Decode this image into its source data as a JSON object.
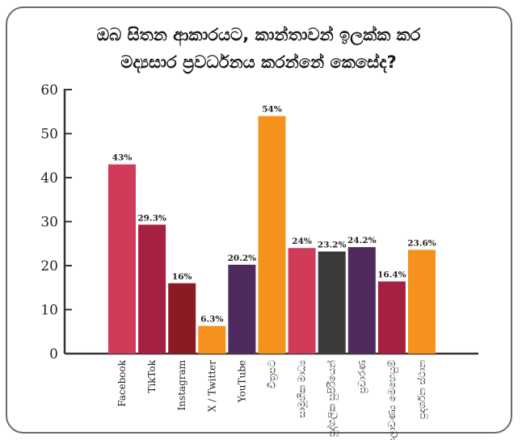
{
  "colors": {
    "pink": "#d13b5a",
    "crimson": "#a5213f",
    "maroon": "#8b1a24",
    "orange": "#f5921e",
    "purple": "#4f2a5e",
    "charcoal": "#3a3a3a"
  },
  "chart_data": {
    "type": "bar",
    "title_lines": [
      "ඔබ සිතන ආකාරයට, කාන්තාවන් ඉලක්ක කර",
      "මද්‍යසාර ප්‍රවර්ධනය කරන්නේ කෙසේද?"
    ],
    "ylim": [
      0,
      60
    ],
    "yticks": [
      0,
      10,
      20,
      30,
      40,
      50,
      60
    ],
    "grid": false,
    "categories": [
      "Facebook",
      "TikTok",
      "Instagram",
      "X / Twitter",
      "YouTube",
      "චිත්‍රපට",
      "සාමූහික මාධ්‍ය",
      "පුද්ගලික සුපිරියෙන්",
      "ප්‍රචාරණ",
      "රූපලාවණ්‍ය මෙහෙයුම්",
      "ප්‍රදර්ශන ස්ථාන"
    ],
    "values": [
      43,
      29.3,
      16,
      6.3,
      20.2,
      54,
      24,
      23.2,
      24.2,
      16.4,
      23.6
    ],
    "labels": [
      "43%",
      "29.3%",
      "16%",
      "6.3%",
      "20.2%",
      "54%",
      "24%",
      "23.2%",
      "24.2%",
      "16.4%",
      "23.6%"
    ],
    "bar_colors": [
      "#d13b5a",
      "#a5213f",
      "#8b1a24",
      "#f5921e",
      "#4f2a5e",
      "#f5921e",
      "#d13b5a",
      "#3a3a3a",
      "#4f2a5e",
      "#a5213f",
      "#f5921e"
    ]
  }
}
